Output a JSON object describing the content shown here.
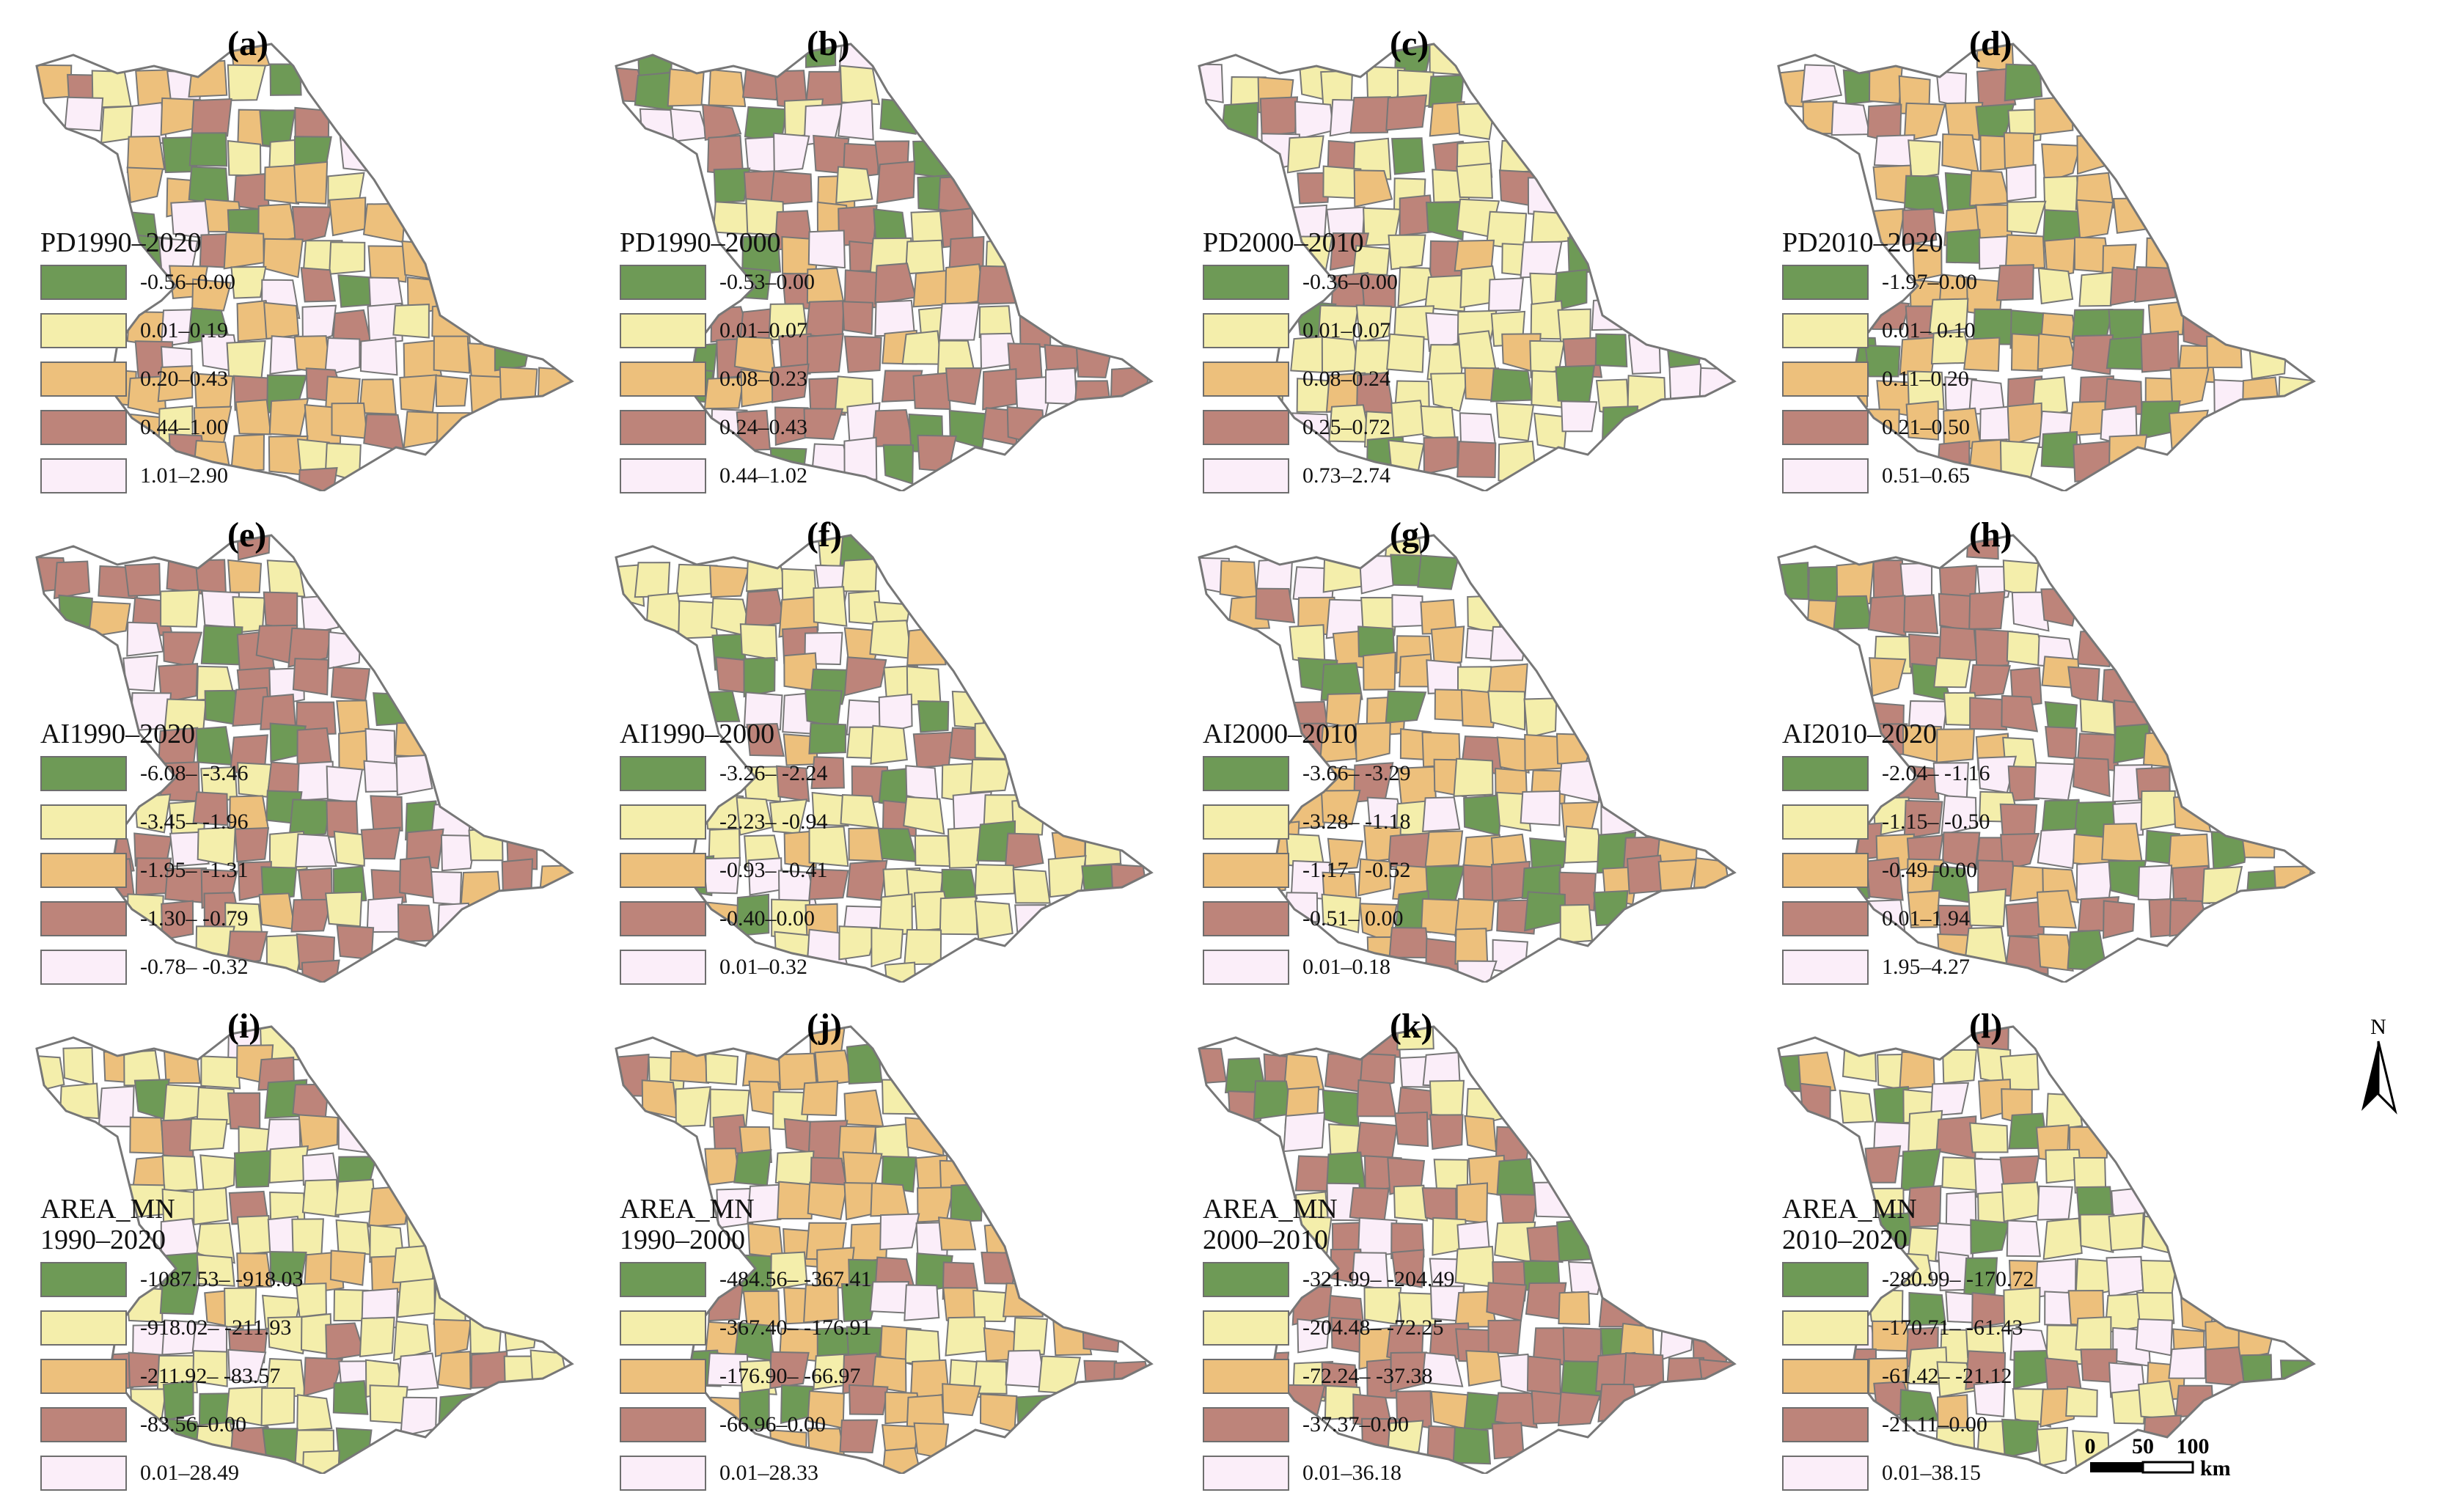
{
  "colors": {
    "class1": "#6e9a56",
    "class2": "#f4eeab",
    "class3": "#edc07c",
    "class4": "#bd847a",
    "class5": "#fbeef9",
    "boundary": "#777777"
  },
  "panels": [
    {
      "label": "(a)",
      "title": "PD1990–2020",
      "classes": [
        "-0.56–0.00",
        "0.01–0.19",
        "0.20–0.43",
        "0.44–1.00",
        "1.01–2.90"
      ],
      "fill_seed": 1
    },
    {
      "label": "(b)",
      "title": "PD1990–2000",
      "classes": [
        "-0.53–0.00",
        "0.01–0.07",
        "0.08–0.23",
        "0.24–0.43",
        "0.44–1.02"
      ],
      "fill_seed": 2
    },
    {
      "label": "(c)",
      "title": "PD2000–2010",
      "classes": [
        "-0.36–0.00",
        "0.01–0.07",
        "0.08–0.24",
        "0.25–0.72",
        "0.73–2.74"
      ],
      "fill_seed": 3
    },
    {
      "label": "(d)",
      "title": "PD2010–2020",
      "classes": [
        "-1.97–0.00",
        "0.01– 0.10",
        "0.11–0.20",
        "0.21–0.50",
        "0.51–0.65"
      ],
      "fill_seed": 4
    },
    {
      "label": "(e)",
      "title": "AI1990–2020",
      "classes": [
        "-6.08– -3.46",
        "-3.45– -1.96",
        "-1.95– -1.31",
        "-1.30– -0.79",
        "-0.78– -0.32"
      ],
      "fill_seed": 5
    },
    {
      "label": "(f)",
      "title": "AI1990–2000",
      "classes": [
        "-3.26– -2.24",
        "-2.23– -0.94",
        "-0.93– -0.41",
        "-0.40–0.00",
        "0.01–0.32"
      ],
      "fill_seed": 6
    },
    {
      "label": "(g)",
      "title": "AI2000–2010",
      "classes": [
        "-3.66– -3.29",
        "-3.28– -1.18",
        "-1.17– -0.52",
        "-0.51– 0.00",
        "0.01–0.18"
      ],
      "fill_seed": 7
    },
    {
      "label": "(h)",
      "title": "AI2010–2020",
      "classes": [
        "-2.04– -1.16",
        "-1.15– -0.50",
        "-0.49–0.00",
        "0.01–1.94",
        "1.95–4.27"
      ],
      "fill_seed": 8
    },
    {
      "label": "(i)",
      "title": "AREA_MN\n1990–2020",
      "classes": [
        "-1087.53– -918.03",
        "-918.02– -211.93",
        "-211.92– -83.57",
        "-83.56–0.00",
        "0.01–28.49"
      ],
      "fill_seed": 9
    },
    {
      "label": "(j)",
      "title": "AREA_MN\n1990–2000",
      "classes": [
        "-484.56– -367.41",
        "-367.40– -176.91",
        "-176.90– -66.97",
        "-66.96–0.00",
        "0.01–28.33"
      ],
      "fill_seed": 10
    },
    {
      "label": "(k)",
      "title": "AREA_MN\n2000–2010",
      "classes": [
        "-321.99– -204.49",
        "-204.48– -72.25",
        "-72.24– -37.38",
        "-37.37–0.00",
        "0.01–36.18"
      ],
      "fill_seed": 11
    },
    {
      "label": "(l)",
      "title": "AREA_MN\n2010–2020",
      "classes": [
        "-280.99– -170.72",
        "-170.71– -61.43",
        "-61.42– -21.12",
        "-21.11–0.00",
        "0.01–38.15"
      ],
      "fill_seed": 12
    }
  ],
  "north_arrow": {
    "label": "N"
  },
  "scale_bar": {
    "ticks": [
      "0",
      "50",
      "100"
    ],
    "unit": "km"
  }
}
